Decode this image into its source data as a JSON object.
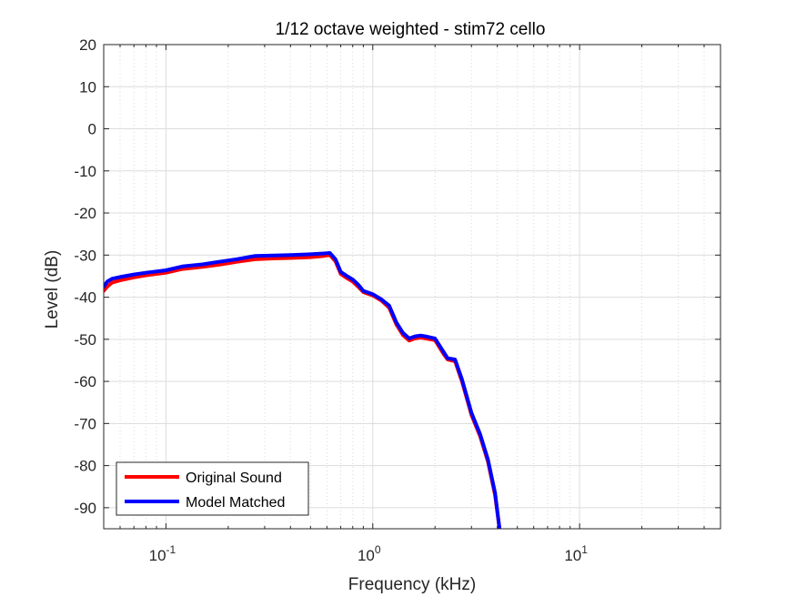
{
  "chart_data": {
    "type": "line",
    "title": "1/12 octave weighted - stim72 cello",
    "xlabel": "Frequency (kHz)",
    "ylabel": "Level (dB)",
    "x_scale": "log",
    "xlim": [
      0.05,
      48
    ],
    "ylim": [
      -95,
      20
    ],
    "grid": true,
    "minor_grid": true,
    "legend_position": "bottom-left",
    "x_ticks": [
      {
        "value": 0.1,
        "base": "10",
        "exp": "-1"
      },
      {
        "value": 1,
        "base": "10",
        "exp": "0"
      },
      {
        "value": 10,
        "base": "10",
        "exp": "1"
      }
    ],
    "y_ticks": [
      20,
      10,
      0,
      -10,
      -20,
      -30,
      -40,
      -50,
      -60,
      -70,
      -80,
      -90
    ],
    "series": [
      {
        "name": "Original Sound",
        "color": "#ff0000",
        "x": [
          0.05,
          0.052,
          0.055,
          0.06,
          0.07,
          0.08,
          0.1,
          0.12,
          0.15,
          0.18,
          0.22,
          0.27,
          0.33,
          0.4,
          0.5,
          0.58,
          0.62,
          0.66,
          0.7,
          0.75,
          0.8,
          0.85,
          0.9,
          1.0,
          1.1,
          1.2,
          1.3,
          1.4,
          1.5,
          1.6,
          1.7,
          1.8,
          2.0,
          2.2,
          2.3,
          2.5,
          2.7,
          3.0,
          3.3,
          3.6,
          3.9,
          4.1
        ],
        "y": [
          -38.5,
          -37.5,
          -36.5,
          -36,
          -35.3,
          -34.8,
          -34.2,
          -33.3,
          -32.8,
          -32.3,
          -31.6,
          -31,
          -30.8,
          -30.7,
          -30.5,
          -30.2,
          -30,
          -31.5,
          -34.5,
          -35.5,
          -36.3,
          -37.5,
          -38.8,
          -39.6,
          -40.8,
          -42.5,
          -46.5,
          -49,
          -50.3,
          -49.8,
          -49.6,
          -49.8,
          -50.2,
          -53.5,
          -54.8,
          -55.2,
          -60,
          -68,
          -73,
          -79,
          -87,
          -95
        ]
      },
      {
        "name": "Model Matched",
        "color": "#0000ff",
        "x": [
          0.05,
          0.052,
          0.055,
          0.06,
          0.07,
          0.08,
          0.1,
          0.12,
          0.15,
          0.18,
          0.22,
          0.27,
          0.33,
          0.4,
          0.5,
          0.58,
          0.62,
          0.66,
          0.7,
          0.75,
          0.8,
          0.85,
          0.9,
          1.0,
          1.1,
          1.2,
          1.3,
          1.4,
          1.5,
          1.6,
          1.7,
          1.8,
          2.0,
          2.2,
          2.3,
          2.5,
          2.7,
          3.0,
          3.3,
          3.6,
          3.9,
          4.1
        ],
        "y": [
          -37.5,
          -36.3,
          -35.6,
          -35.2,
          -34.6,
          -34.2,
          -33.6,
          -32.7,
          -32.2,
          -31.6,
          -31,
          -30.2,
          -30.1,
          -30,
          -29.8,
          -29.6,
          -29.5,
          -31,
          -34,
          -35,
          -35.8,
          -37,
          -38.5,
          -39.3,
          -40.5,
          -42,
          -46,
          -48.5,
          -49.8,
          -49.3,
          -49.1,
          -49.3,
          -49.8,
          -53,
          -54.5,
          -54.8,
          -59.5,
          -67.5,
          -72.5,
          -78.5,
          -86.5,
          -95
        ]
      }
    ]
  }
}
